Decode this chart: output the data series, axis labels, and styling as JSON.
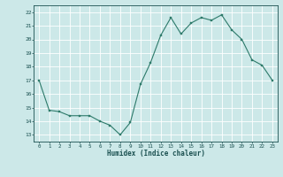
{
  "x": [
    0,
    1,
    2,
    3,
    4,
    5,
    6,
    7,
    8,
    9,
    10,
    11,
    12,
    13,
    14,
    15,
    16,
    17,
    18,
    19,
    20,
    21,
    22,
    23
  ],
  "y": [
    17.0,
    14.8,
    14.7,
    14.4,
    14.4,
    14.4,
    14.0,
    13.7,
    13.0,
    13.9,
    16.7,
    18.3,
    20.3,
    21.6,
    20.4,
    21.2,
    21.6,
    21.4,
    21.8,
    20.7,
    20.0,
    18.5,
    18.1,
    17.0
  ],
  "xlim": [
    -0.5,
    23.5
  ],
  "ylim": [
    12.5,
    22.5
  ],
  "yticks": [
    13,
    14,
    15,
    16,
    17,
    18,
    19,
    20,
    21,
    22
  ],
  "xticks": [
    0,
    1,
    2,
    3,
    4,
    5,
    6,
    7,
    8,
    9,
    10,
    11,
    12,
    13,
    14,
    15,
    16,
    17,
    18,
    19,
    20,
    21,
    22,
    23
  ],
  "xlabel": "Humidex (Indice chaleur)",
  "bg_color": "#cce8e8",
  "grid_color": "#ffffff",
  "line_color": "#2d7a6a",
  "marker_color": "#2d7a6a",
  "text_color": "#1a5050",
  "tick_color": "#1a5050",
  "grid_minor_color": "#ddeaea"
}
